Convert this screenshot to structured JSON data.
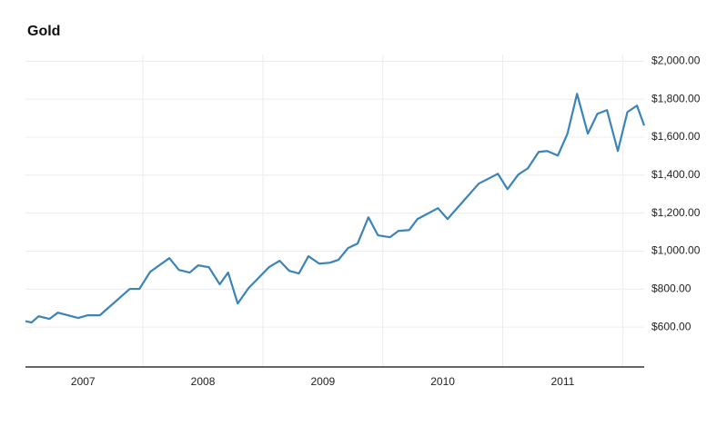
{
  "chart_data": {
    "type": "line",
    "title": "Gold",
    "x": [
      2007.02,
      2007.07,
      2007.13,
      2007.22,
      2007.29,
      2007.46,
      2007.54,
      2007.64,
      2007.89,
      2007.97,
      2008.06,
      2008.22,
      2008.3,
      2008.39,
      2008.46,
      2008.55,
      2008.64,
      2008.71,
      2008.79,
      2008.88,
      2009.05,
      2009.14,
      2009.22,
      2009.3,
      2009.38,
      2009.47,
      2009.56,
      2009.63,
      2009.71,
      2009.79,
      2009.88,
      2009.96,
      2010.06,
      2010.13,
      2010.22,
      2010.29,
      2010.46,
      2010.54,
      2010.8,
      2010.96,
      2011.04,
      2011.13,
      2011.21,
      2011.3,
      2011.37,
      2011.46,
      2011.54,
      2011.62,
      2011.71,
      2011.79,
      2011.87,
      2011.96,
      2012.04,
      2012.12,
      2012.18
    ],
    "series": [
      {
        "name": "Gold",
        "color": "#3a84b9",
        "values": [
          631,
          624,
          657,
          643,
          676,
          648,
          662,
          662,
          801,
          801,
          891,
          963,
          901,
          887,
          925,
          915,
          825,
          887,
          724,
          805,
          915,
          949,
          896,
          882,
          973,
          934,
          939,
          954,
          1016,
          1040,
          1178,
          1083,
          1073,
          1106,
          1111,
          1169,
          1226,
          1169,
          1355,
          1407,
          1326,
          1403,
          1436,
          1522,
          1527,
          1503,
          1618,
          1828,
          1618,
          1723,
          1742,
          1527,
          1732,
          1766,
          1661
        ]
      }
    ],
    "xlim": [
      2007.02,
      2012.18
    ],
    "xticks": [
      {
        "value": 2007.5,
        "label": "2007"
      },
      {
        "value": 2008.5,
        "label": "2008"
      },
      {
        "value": 2009.5,
        "label": "2009"
      },
      {
        "value": 2010.5,
        "label": "2010"
      },
      {
        "value": 2011.5,
        "label": "2011"
      }
    ],
    "xgrid": [
      2008,
      2009,
      2010,
      2011,
      2012
    ],
    "ylim": [
      390,
      2035
    ],
    "yticks": [
      {
        "value": 600,
        "label": "$600.00"
      },
      {
        "value": 800,
        "label": "$800.00"
      },
      {
        "value": 1000,
        "label": "$1,000.00"
      },
      {
        "value": 1200,
        "label": "$1,200.00"
      },
      {
        "value": 1400,
        "label": "$1,400.00"
      },
      {
        "value": 1600,
        "label": "$1,600.00"
      },
      {
        "value": 1800,
        "label": "$1,800.00"
      },
      {
        "value": 2000,
        "label": "$2,000.00"
      }
    ],
    "grid": true
  }
}
